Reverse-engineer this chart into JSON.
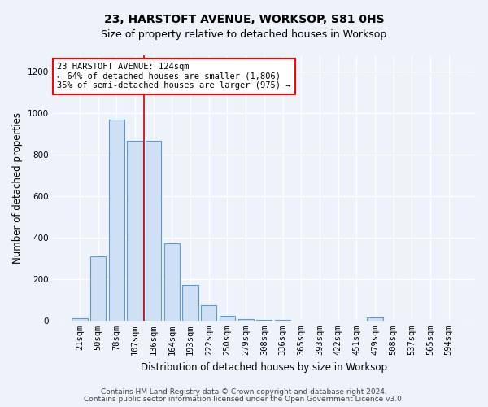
{
  "title": "23, HARSTOFT AVENUE, WORKSOP, S81 0HS",
  "subtitle": "Size of property relative to detached houses in Worksop",
  "xlabel": "Distribution of detached houses by size in Worksop",
  "ylabel": "Number of detached properties",
  "categories": [
    "21sqm",
    "50sqm",
    "78sqm",
    "107sqm",
    "136sqm",
    "164sqm",
    "193sqm",
    "222sqm",
    "250sqm",
    "279sqm",
    "308sqm",
    "336sqm",
    "365sqm",
    "393sqm",
    "422sqm",
    "451sqm",
    "479sqm",
    "508sqm",
    "537sqm",
    "565sqm",
    "594sqm"
  ],
  "values": [
    10,
    310,
    970,
    865,
    865,
    370,
    170,
    75,
    22,
    8,
    2,
    2,
    1,
    1,
    0,
    0,
    13,
    0,
    0,
    0,
    0
  ],
  "bar_color": "#cfe0f5",
  "bar_edge_color": "#5b9bd5",
  "vline_x": 3.5,
  "vline_color": "#cc0000",
  "annotation_text": "23 HARSTOFT AVENUE: 124sqm\n← 64% of detached houses are smaller (1,806)\n35% of semi-detached houses are larger (975) →",
  "annotation_box_color": "white",
  "annotation_box_edge": "red",
  "ylim": [
    0,
    1280
  ],
  "yticks": [
    0,
    200,
    400,
    600,
    800,
    1000,
    1200
  ],
  "footer_line1": "Contains HM Land Registry data © Crown copyright and database right 2024.",
  "footer_line2": "Contains public sector information licensed under the Open Government Licence v3.0.",
  "bg_color": "#eef2fb",
  "plot_bg_color": "#eef2fb",
  "grid_color": "white",
  "title_fontsize": 10,
  "subtitle_fontsize": 9,
  "axis_label_fontsize": 8.5,
  "tick_fontsize": 7.5,
  "annotation_fontsize": 7.5,
  "footer_fontsize": 6.5
}
